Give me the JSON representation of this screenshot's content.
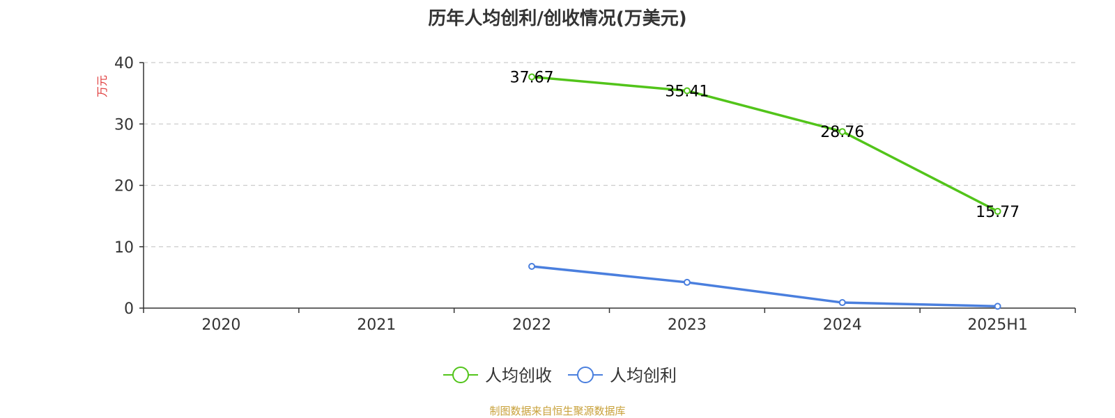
{
  "chart_data": {
    "type": "line",
    "title": "历年人均创利/创收情况(万美元)",
    "ylabel": "万元",
    "categories": [
      "2020",
      "2021",
      "2022",
      "2023",
      "2024",
      "2025H1"
    ],
    "ylim": [
      0,
      40
    ],
    "yticks": [
      0,
      10,
      20,
      30,
      40
    ],
    "grid": true,
    "legend_position": "bottom",
    "series": [
      {
        "name": "人均创收",
        "color": "#52c41a",
        "values": [
          null,
          null,
          37.67,
          35.41,
          28.76,
          15.77
        ],
        "show_labels": true
      },
      {
        "name": "人均创利",
        "color": "#4a7fde",
        "values": [
          null,
          null,
          6.8,
          4.2,
          0.9,
          0.3
        ],
        "show_labels": false
      }
    ]
  },
  "ylabel_color": "#e03c3c",
  "source": "制图数据来自恒生聚源数据库"
}
